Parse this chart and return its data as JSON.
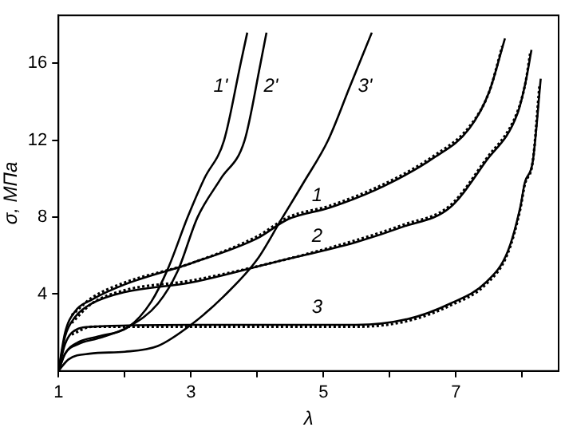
{
  "chart_data": {
    "type": "line",
    "xlabel": "λ",
    "ylabel": "σ, МПа",
    "xlim": [
      1,
      8.55
    ],
    "ylim": [
      0,
      18.5
    ],
    "xticks": [
      1,
      {
        "value": 2,
        "label": null
      },
      3,
      {
        "value": 4,
        "label": null
      },
      5,
      {
        "value": 6,
        "label": null
      },
      7,
      {
        "value": 8,
        "label": null
      }
    ],
    "yticks": [
      4,
      8,
      12,
      16
    ],
    "grid": false,
    "legend": false,
    "marker": "none",
    "series": [
      {
        "name": "1'",
        "color": "#000000",
        "line_style": "solid",
        "x": [
          1,
          1.1,
          1.3,
          1.6,
          2.06,
          2.4,
          2.65,
          2.95,
          3.2,
          3.5,
          3.75,
          3.85
        ],
        "values": [
          0,
          0.9,
          1.5,
          1.8,
          2.3,
          3.6,
          5.3,
          8,
          10,
          12,
          16,
          17.6
        ]
      },
      {
        "name": "2'",
        "color": "#000000",
        "line_style": "solid",
        "x": [
          1,
          1.1,
          1.3,
          1.6,
          2.06,
          2.5,
          2.8,
          3.1,
          3.45,
          3.81,
          4.05,
          4.14
        ],
        "values": [
          0,
          0.9,
          1.4,
          1.7,
          2.3,
          3.5,
          5.2,
          8,
          10,
          12,
          16,
          17.6
        ]
      },
      {
        "name": "3'",
        "color": "#000000",
        "line_style": "solid",
        "x": [
          1,
          1.15,
          1.47,
          2,
          2.5,
          3,
          3.5,
          4,
          4.35,
          4.7,
          5.07,
          5.4,
          5.73
        ],
        "values": [
          0,
          0.6,
          0.9,
          1,
          1.3,
          2.4,
          3.9,
          5.8,
          7.8,
          9.8,
          12,
          14.8,
          17.6
        ]
      },
      {
        "name": "1",
        "color": "#000000",
        "line_style": "solid",
        "x": [
          1,
          1.1,
          1.25,
          1.5,
          2,
          3,
          4,
          4.47,
          5.1,
          5.9,
          6.67,
          7.2,
          7.5,
          7.74
        ],
        "values": [
          0,
          2,
          3.1,
          3.7,
          4.5,
          5.6,
          6.9,
          7.9,
          8.5,
          9.6,
          11.1,
          12.6,
          14.5,
          17.3
        ]
      },
      {
        "name": "2",
        "color": "#000000",
        "line_style": "solid",
        "x": [
          1,
          1.1,
          1.25,
          1.5,
          2,
          3,
          4.31,
          5.49,
          6.2,
          6.91,
          7.45,
          7.93,
          8.05,
          8.14
        ],
        "values": [
          0,
          1.8,
          2.8,
          3.5,
          4.1,
          4.6,
          5.7,
          6.7,
          7.5,
          8.5,
          10.9,
          13.4,
          15,
          16.7
        ]
      },
      {
        "name": "3",
        "color": "#000000",
        "line_style": "solid",
        "x": [
          1,
          1.1,
          1.3,
          1.5,
          3,
          4.3,
          5.49,
          6.27,
          6.91,
          7.45,
          7.78,
          7.97,
          8.04,
          8.16,
          8.28
        ],
        "values": [
          0,
          1.4,
          2.2,
          2.3,
          2.4,
          2.4,
          2.4,
          2.7,
          3.5,
          4.6,
          6.2,
          8.5,
          9.8,
          10.9,
          15.2
        ]
      },
      {
        "color": "#000000",
        "line_style": "dotted",
        "x": [
          1.2,
          1.5,
          2,
          3,
          4,
          4.47,
          5.1,
          5.9,
          6.67,
          7.2,
          7.5,
          7.7
        ],
        "values": [
          2.9,
          3.8,
          4.6,
          5.6,
          7,
          8,
          8.6,
          9.7,
          11.2,
          12.7,
          14.5,
          16.9
        ]
      },
      {
        "color": "#000000",
        "line_style": "dotted",
        "x": [
          1.2,
          1.5,
          2,
          3,
          4.31,
          5.49,
          6.2,
          6.91,
          7.45,
          7.93,
          8.05,
          8.12
        ],
        "values": [
          2.5,
          3.5,
          4.2,
          4.7,
          5.7,
          6.8,
          7.6,
          8.6,
          11,
          13.5,
          15,
          16.5
        ]
      },
      {
        "color": "#000000",
        "line_style": "dotted",
        "x": [
          1.2,
          1.5,
          3,
          4.3,
          5.49,
          6.27,
          6.91,
          7.45,
          7.78,
          7.97,
          8.04,
          8.16,
          8.26
        ],
        "values": [
          1.9,
          2.3,
          2.3,
          2.3,
          2.3,
          2.6,
          3.4,
          4.5,
          6.1,
          8.4,
          9.7,
          10.9,
          14.8
        ]
      }
    ]
  }
}
